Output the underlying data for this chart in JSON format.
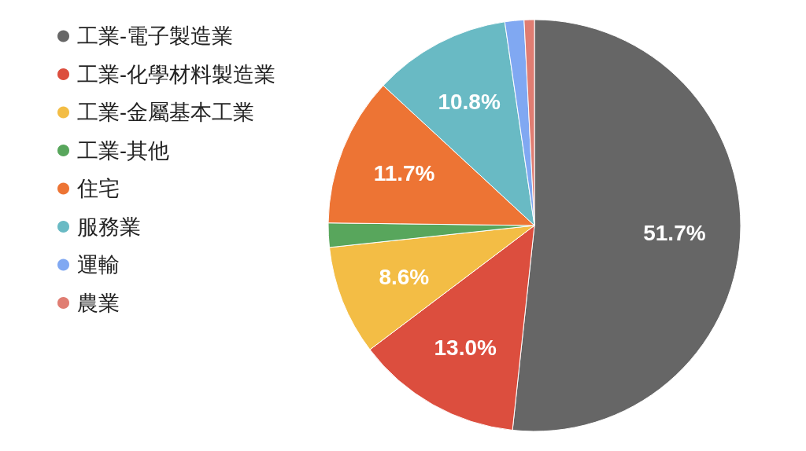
{
  "chart_data": {
    "type": "pie",
    "categories": [
      "工業-電子製造業",
      "工業-化學材料製造業",
      "工業-金屬基本工業",
      "工業-其他",
      "住宅",
      "服務業",
      "運輸",
      "農業"
    ],
    "values": [
      51.7,
      13.0,
      8.6,
      1.9,
      11.7,
      10.8,
      1.5,
      0.8
    ],
    "colors": [
      "#666666",
      "#dc4e3e",
      "#f3bd45",
      "#58a65c",
      "#ed7434",
      "#69bac4",
      "#80a8f2",
      "#e07d72"
    ],
    "value_labels": [
      "51.7%",
      "13.0%",
      "8.6%",
      null,
      "11.7%",
      "10.8%",
      null,
      null
    ],
    "legend": "left"
  }
}
